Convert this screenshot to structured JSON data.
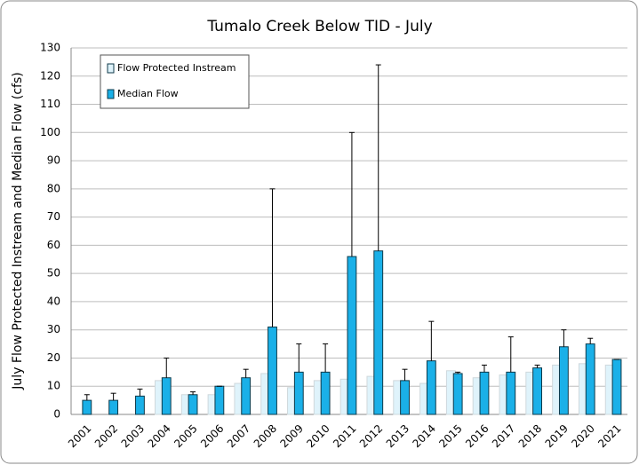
{
  "chart_data": {
    "type": "bar",
    "title": "Tumalo Creek Below TID - July",
    "y_label": "July Flow  Protected Instream and Median Flow (cfs)",
    "categories": [
      "2001",
      "2002",
      "2003",
      "2004",
      "2005",
      "2006",
      "2007",
      "2008",
      "2009",
      "2010",
      "2011",
      "2012",
      "2013",
      "2014",
      "2015",
      "2016",
      "2017",
      "2018",
      "2019",
      "2020",
      "2021"
    ],
    "series": [
      {
        "name": "Flow Protected Instream",
        "color": "#dff3fb",
        "values": [
          0,
          0,
          0,
          12,
          7,
          7,
          11,
          14.5,
          9.5,
          12,
          12.5,
          13.5,
          12,
          11,
          15.5,
          13,
          14,
          15,
          17.5,
          18,
          17.5
        ]
      },
      {
        "name": "Median Flow",
        "color": "#1ab0e8",
        "values": [
          5,
          5,
          6.5,
          13,
          7,
          10,
          13,
          31,
          15,
          15,
          56,
          58,
          12,
          19,
          14.5,
          15,
          15,
          16.5,
          24,
          25,
          19.5
        ],
        "max": [
          7,
          7.5,
          9,
          20,
          8,
          10,
          16,
          80,
          25,
          25,
          100,
          124,
          16,
          33,
          15,
          17.5,
          27.5,
          17.5,
          30,
          27,
          19.5
        ]
      }
    ],
    "ylim": [
      0,
      130
    ],
    "yticks": [
      0,
      10,
      20,
      30,
      40,
      50,
      60,
      70,
      80,
      90,
      100,
      110,
      120,
      130
    ],
    "grid": true,
    "legend": "top-left"
  }
}
